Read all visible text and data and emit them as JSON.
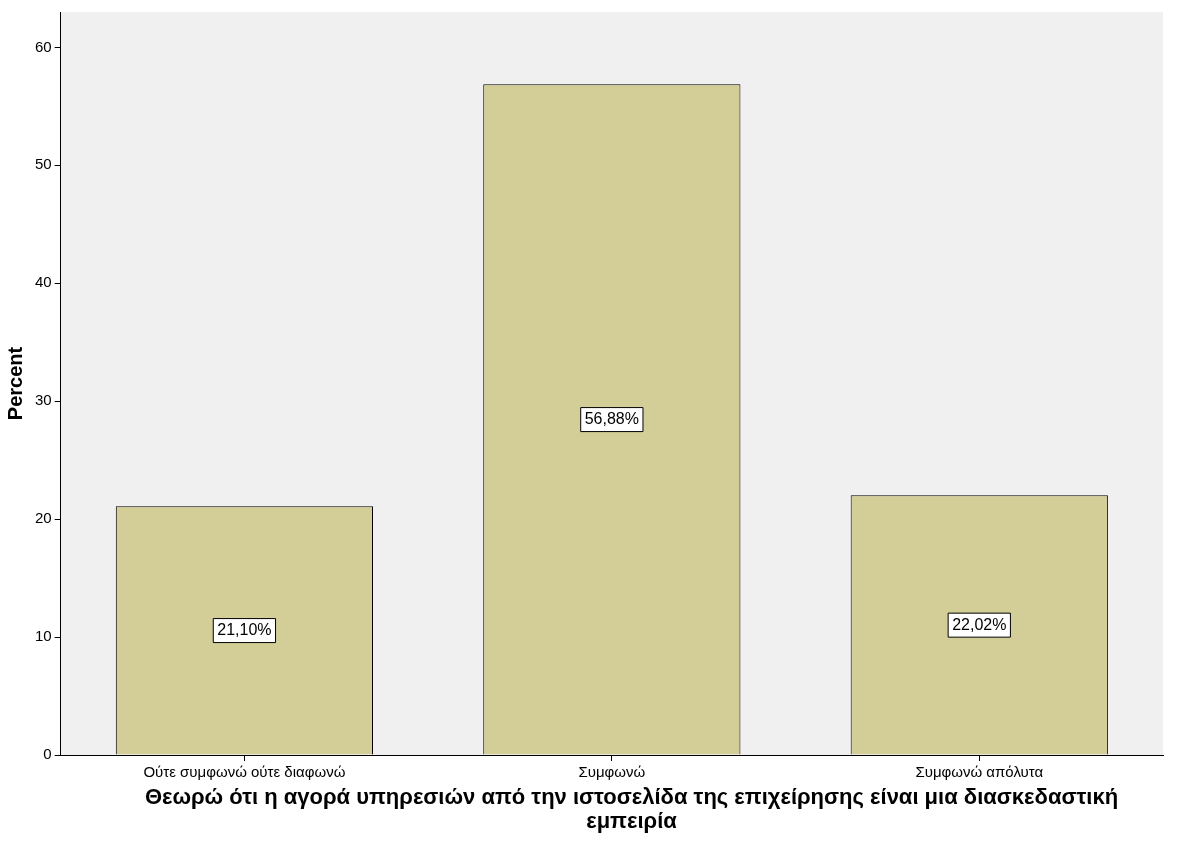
{
  "chart_data": {
    "type": "bar",
    "ylabel": "Percent",
    "xlabel": "Θεωρώ ότι η αγορά υπηρεσιών από την ιστοσελίδα της επιχείρησης είναι μια διασκεδαστική εμπειρία",
    "categories": [
      "Ούτε συμφωνώ ούτε διαφωνώ",
      "Συμφωνώ",
      "Συμφωνώ απόλυτα"
    ],
    "values": [
      21.1,
      56.88,
      22.02
    ],
    "value_labels": [
      "21,10%",
      "56,88%",
      "22,02%"
    ],
    "color": "#d3ce97",
    "ylim": [
      0,
      63
    ],
    "yticks": [
      0,
      10,
      20,
      30,
      40,
      50,
      60
    ],
    "grid": false,
    "legend": false
  }
}
